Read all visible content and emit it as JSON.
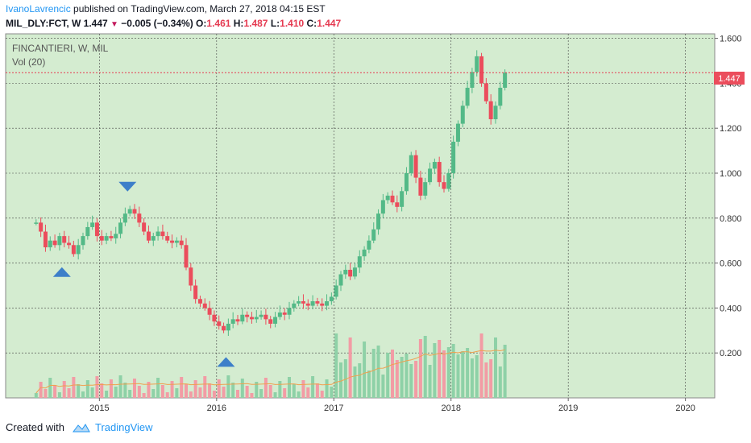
{
  "header": {
    "author": "IvanoLavrencic",
    "published_text": " published on TradingView.com, March 27, 2018 04:15 EST",
    "symbol": "MIL_DLY:FCT, W",
    "last": "1.447",
    "change": "−0.005 (−0.34%)",
    "o_label": "O:",
    "o": "1.461",
    "h_label": "H:",
    "h": "1.487",
    "l_label": "L:",
    "l": "1.410",
    "c_label": "C:",
    "c": "1.447"
  },
  "legend": {
    "title": "FINCANTIERI, W, MIL",
    "vol": "Vol (20)"
  },
  "footer": {
    "created_with": "Created with",
    "brand": "TradingView"
  },
  "colors": {
    "background": "#d4ecd0",
    "up": "#53b987",
    "down": "#eb4d5c",
    "up_vol": "#8ed1a7",
    "down_vol": "#f29ca5",
    "marker": "#3d7fc9",
    "price_line": "#e53950",
    "vol_ma": "#f0a050",
    "tv_blue": "#2196f3"
  },
  "chart_data": {
    "type": "candlestick",
    "interval": "weekly",
    "y_axis_ticks": [
      "0.200",
      "0.400",
      "0.600",
      "0.800",
      "1.000",
      "1.200",
      "1.400",
      "1.600"
    ],
    "x_axis_ticks": [
      "2015",
      "2016",
      "2017",
      "2018",
      "2019",
      "2020"
    ],
    "last_price_label": "1.447",
    "last_price": 1.447,
    "ylim": [
      0.0,
      1.62
    ],
    "xlim": [
      2014.2,
      2020.25
    ],
    "grid": true,
    "close_series": [
      {
        "x": 2014.46,
        "close": 0.78
      },
      {
        "x": 2014.5,
        "close": 0.74
      },
      {
        "x": 2014.54,
        "close": 0.67
      },
      {
        "x": 2014.58,
        "close": 0.7
      },
      {
        "x": 2014.62,
        "close": 0.68
      },
      {
        "x": 2014.66,
        "close": 0.72
      },
      {
        "x": 2014.7,
        "close": 0.69
      },
      {
        "x": 2014.74,
        "close": 0.68
      },
      {
        "x": 2014.78,
        "close": 0.64
      },
      {
        "x": 2014.82,
        "close": 0.68
      },
      {
        "x": 2014.86,
        "close": 0.72
      },
      {
        "x": 2014.9,
        "close": 0.76
      },
      {
        "x": 2014.94,
        "close": 0.78
      },
      {
        "x": 2014.98,
        "close": 0.72
      },
      {
        "x": 2015.02,
        "close": 0.7
      },
      {
        "x": 2015.06,
        "close": 0.72
      },
      {
        "x": 2015.1,
        "close": 0.71
      },
      {
        "x": 2015.14,
        "close": 0.73
      },
      {
        "x": 2015.18,
        "close": 0.78
      },
      {
        "x": 2015.22,
        "close": 0.82
      },
      {
        "x": 2015.26,
        "close": 0.84
      },
      {
        "x": 2015.3,
        "close": 0.82
      },
      {
        "x": 2015.34,
        "close": 0.78
      },
      {
        "x": 2015.38,
        "close": 0.74
      },
      {
        "x": 2015.42,
        "close": 0.7
      },
      {
        "x": 2015.46,
        "close": 0.72
      },
      {
        "x": 2015.5,
        "close": 0.74
      },
      {
        "x": 2015.54,
        "close": 0.72
      },
      {
        "x": 2015.58,
        "close": 0.7
      },
      {
        "x": 2015.62,
        "close": 0.69
      },
      {
        "x": 2015.66,
        "close": 0.7
      },
      {
        "x": 2015.7,
        "close": 0.68
      },
      {
        "x": 2015.74,
        "close": 0.58
      },
      {
        "x": 2015.78,
        "close": 0.5
      },
      {
        "x": 2015.82,
        "close": 0.44
      },
      {
        "x": 2015.86,
        "close": 0.42
      },
      {
        "x": 2015.9,
        "close": 0.4
      },
      {
        "x": 2015.94,
        "close": 0.37
      },
      {
        "x": 2015.98,
        "close": 0.34
      },
      {
        "x": 2016.02,
        "close": 0.32
      },
      {
        "x": 2016.06,
        "close": 0.3
      },
      {
        "x": 2016.1,
        "close": 0.33
      },
      {
        "x": 2016.14,
        "close": 0.35
      },
      {
        "x": 2016.18,
        "close": 0.34
      },
      {
        "x": 2016.22,
        "close": 0.37
      },
      {
        "x": 2016.26,
        "close": 0.36
      },
      {
        "x": 2016.3,
        "close": 0.35
      },
      {
        "x": 2016.34,
        "close": 0.36
      },
      {
        "x": 2016.38,
        "close": 0.37
      },
      {
        "x": 2016.42,
        "close": 0.35
      },
      {
        "x": 2016.46,
        "close": 0.33
      },
      {
        "x": 2016.5,
        "close": 0.36
      },
      {
        "x": 2016.54,
        "close": 0.38
      },
      {
        "x": 2016.58,
        "close": 0.37
      },
      {
        "x": 2016.62,
        "close": 0.4
      },
      {
        "x": 2016.66,
        "close": 0.42
      },
      {
        "x": 2016.7,
        "close": 0.43
      },
      {
        "x": 2016.74,
        "close": 0.42
      },
      {
        "x": 2016.78,
        "close": 0.41
      },
      {
        "x": 2016.82,
        "close": 0.43
      },
      {
        "x": 2016.86,
        "close": 0.42
      },
      {
        "x": 2016.9,
        "close": 0.41
      },
      {
        "x": 2016.94,
        "close": 0.43
      },
      {
        "x": 2016.98,
        "close": 0.45
      },
      {
        "x": 2017.02,
        "close": 0.5
      },
      {
        "x": 2017.06,
        "close": 0.55
      },
      {
        "x": 2017.1,
        "close": 0.57
      },
      {
        "x": 2017.14,
        "close": 0.54
      },
      {
        "x": 2017.18,
        "close": 0.58
      },
      {
        "x": 2017.22,
        "close": 0.63
      },
      {
        "x": 2017.26,
        "close": 0.66
      },
      {
        "x": 2017.3,
        "close": 0.7
      },
      {
        "x": 2017.34,
        "close": 0.75
      },
      {
        "x": 2017.38,
        "close": 0.82
      },
      {
        "x": 2017.42,
        "close": 0.88
      },
      {
        "x": 2017.46,
        "close": 0.9
      },
      {
        "x": 2017.5,
        "close": 0.87
      },
      {
        "x": 2017.54,
        "close": 0.85
      },
      {
        "x": 2017.58,
        "close": 0.92
      },
      {
        "x": 2017.62,
        "close": 1.0
      },
      {
        "x": 2017.66,
        "close": 1.08
      },
      {
        "x": 2017.7,
        "close": 0.98
      },
      {
        "x": 2017.74,
        "close": 0.9
      },
      {
        "x": 2017.78,
        "close": 0.96
      },
      {
        "x": 2017.82,
        "close": 1.02
      },
      {
        "x": 2017.86,
        "close": 1.05
      },
      {
        "x": 2017.9,
        "close": 0.96
      },
      {
        "x": 2017.94,
        "close": 0.93
      },
      {
        "x": 2017.98,
        "close": 1.0
      },
      {
        "x": 2018.02,
        "close": 1.14
      },
      {
        "x": 2018.06,
        "close": 1.22
      },
      {
        "x": 2018.1,
        "close": 1.3
      },
      {
        "x": 2018.14,
        "close": 1.38
      },
      {
        "x": 2018.18,
        "close": 1.45
      },
      {
        "x": 2018.22,
        "close": 1.52
      },
      {
        "x": 2018.26,
        "close": 1.4
      },
      {
        "x": 2018.3,
        "close": 1.32
      },
      {
        "x": 2018.34,
        "close": 1.24
      },
      {
        "x": 2018.38,
        "close": 1.3
      },
      {
        "x": 2018.42,
        "close": 1.38
      },
      {
        "x": 2018.46,
        "close": 1.447
      }
    ],
    "markers": [
      {
        "type": "down",
        "x": 2015.24,
        "y": 0.94
      },
      {
        "type": "up",
        "x": 2014.68,
        "y": 0.56
      },
      {
        "type": "up",
        "x": 2016.08,
        "y": 0.16
      }
    ]
  }
}
